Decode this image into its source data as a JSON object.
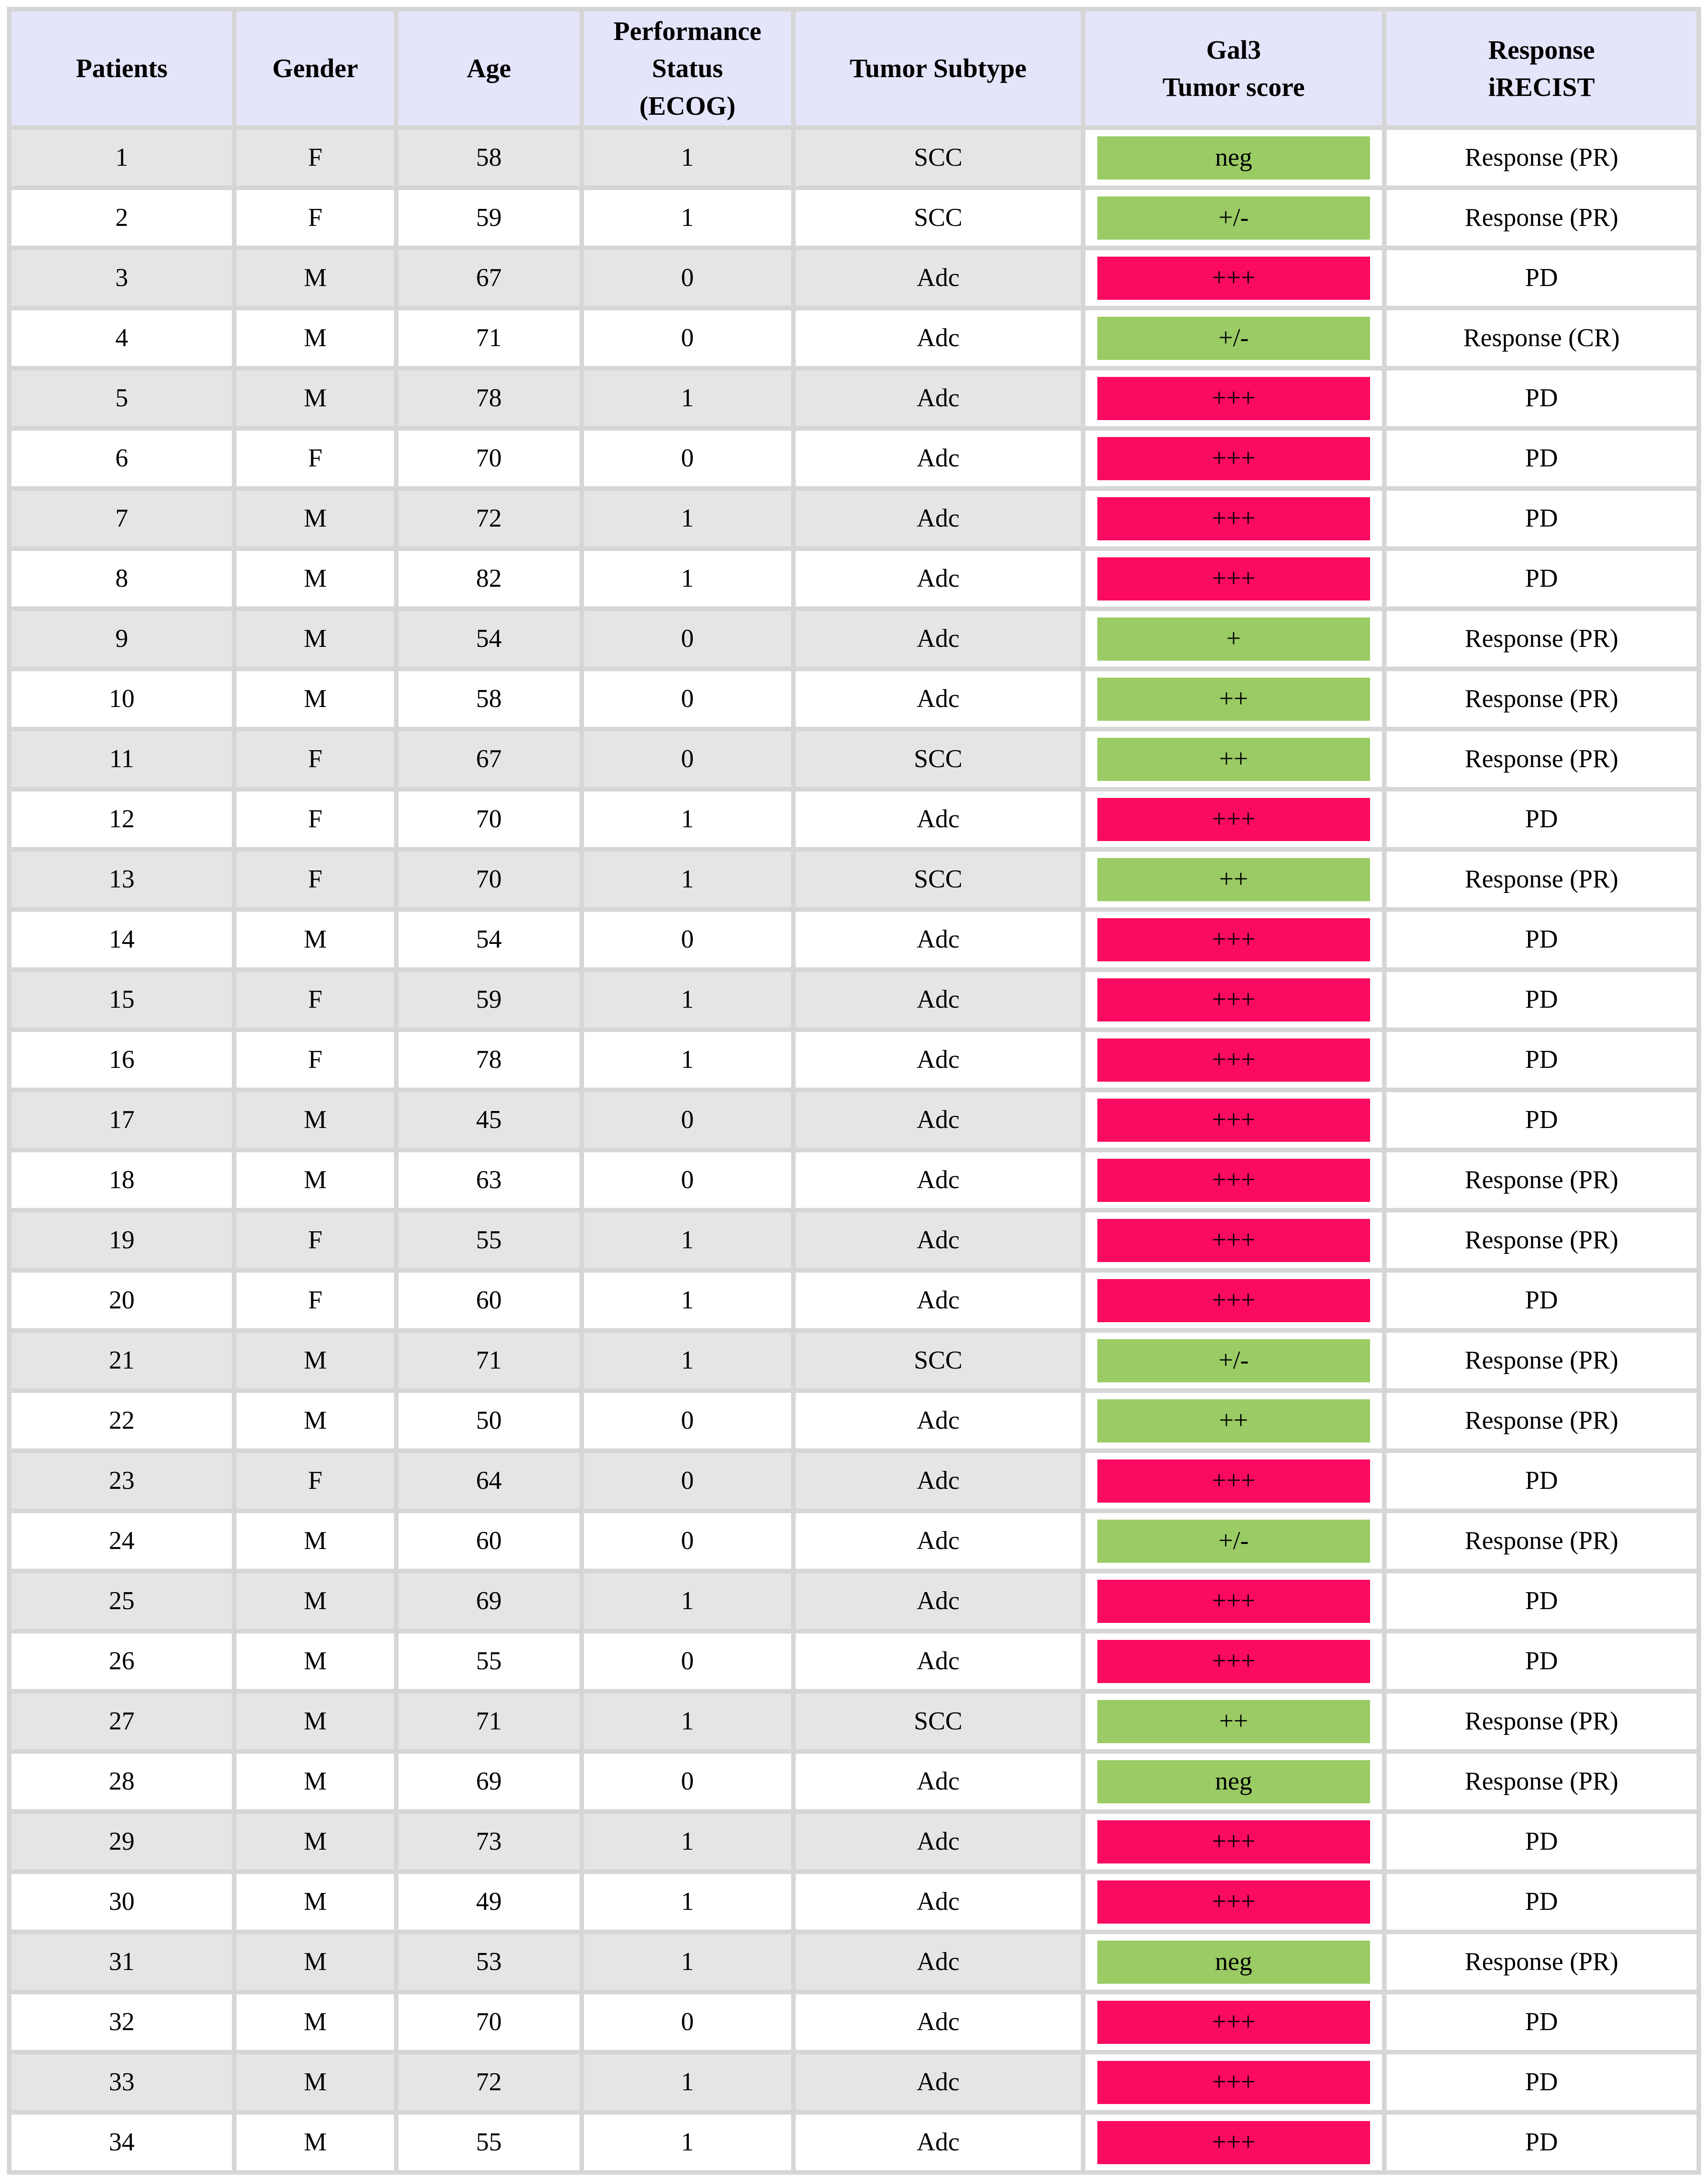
{
  "colors": {
    "header_bg": "#E4E4FA",
    "stripe_bg": "#E5E5E7",
    "grid_bg": "#D6D6D6",
    "gal3_green": "#9ACB64",
    "gal3_pink": "#FA0A60"
  },
  "table": {
    "columns": [
      {
        "id": "patient",
        "lines": [
          "Patients"
        ]
      },
      {
        "id": "gender",
        "lines": [
          "Gender"
        ]
      },
      {
        "id": "age",
        "lines": [
          "Age"
        ]
      },
      {
        "id": "ecog",
        "lines": [
          "Performance",
          "Status",
          "(ECOG)"
        ]
      },
      {
        "id": "subtype",
        "lines": [
          "Tumor Subtype"
        ]
      },
      {
        "id": "gal3",
        "lines": [
          "Gal3",
          "Tumor score"
        ]
      },
      {
        "id": "response",
        "lines": [
          "Response",
          "iRECIST"
        ]
      }
    ],
    "rows": [
      {
        "patient": "1",
        "gender": "F",
        "age": "58",
        "ecog": "1",
        "subtype": "SCC",
        "gal3": "neg",
        "gal3_color": "green",
        "response": "Response (PR)"
      },
      {
        "patient": "2",
        "gender": "F",
        "age": "59",
        "ecog": "1",
        "subtype": "SCC",
        "gal3": "+/-",
        "gal3_color": "green",
        "response": "Response (PR)"
      },
      {
        "patient": "3",
        "gender": "M",
        "age": "67",
        "ecog": "0",
        "subtype": "Adc",
        "gal3": "+++",
        "gal3_color": "pink",
        "response": "PD"
      },
      {
        "patient": "4",
        "gender": "M",
        "age": "71",
        "ecog": "0",
        "subtype": "Adc",
        "gal3": "+/-",
        "gal3_color": "green",
        "response": "Response (CR)"
      },
      {
        "patient": "5",
        "gender": "M",
        "age": "78",
        "ecog": "1",
        "subtype": "Adc",
        "gal3": "+++",
        "gal3_color": "pink",
        "response": "PD"
      },
      {
        "patient": "6",
        "gender": "F",
        "age": "70",
        "ecog": "0",
        "subtype": "Adc",
        "gal3": "+++",
        "gal3_color": "pink",
        "response": "PD"
      },
      {
        "patient": "7",
        "gender": "M",
        "age": "72",
        "ecog": "1",
        "subtype": "Adc",
        "gal3": "+++",
        "gal3_color": "pink",
        "response": "PD"
      },
      {
        "patient": "8",
        "gender": "M",
        "age": "82",
        "ecog": "1",
        "subtype": "Adc",
        "gal3": "+++",
        "gal3_color": "pink",
        "response": "PD"
      },
      {
        "patient": "9",
        "gender": "M",
        "age": "54",
        "ecog": "0",
        "subtype": "Adc",
        "gal3": "+",
        "gal3_color": "green",
        "response": "Response (PR)"
      },
      {
        "patient": "10",
        "gender": "M",
        "age": "58",
        "ecog": "0",
        "subtype": "Adc",
        "gal3": "++",
        "gal3_color": "green",
        "response": "Response (PR)"
      },
      {
        "patient": "11",
        "gender": "F",
        "age": "67",
        "ecog": "0",
        "subtype": "SCC",
        "gal3": "++",
        "gal3_color": "green",
        "response": "Response (PR)"
      },
      {
        "patient": "12",
        "gender": "F",
        "age": "70",
        "ecog": "1",
        "subtype": "Adc",
        "gal3": "+++",
        "gal3_color": "pink",
        "response": "PD"
      },
      {
        "patient": "13",
        "gender": "F",
        "age": "70",
        "ecog": "1",
        "subtype": "SCC",
        "gal3": "++",
        "gal3_color": "green",
        "response": "Response (PR)"
      },
      {
        "patient": "14",
        "gender": "M",
        "age": "54",
        "ecog": "0",
        "subtype": "Adc",
        "gal3": "+++",
        "gal3_color": "pink",
        "response": "PD"
      },
      {
        "patient": "15",
        "gender": "F",
        "age": "59",
        "ecog": "1",
        "subtype": "Adc",
        "gal3": "+++",
        "gal3_color": "pink",
        "response": "PD"
      },
      {
        "patient": "16",
        "gender": "F",
        "age": "78",
        "ecog": "1",
        "subtype": "Adc",
        "gal3": "+++",
        "gal3_color": "pink",
        "response": "PD"
      },
      {
        "patient": "17",
        "gender": "M",
        "age": "45",
        "ecog": "0",
        "subtype": "Adc",
        "gal3": "+++",
        "gal3_color": "pink",
        "response": "PD"
      },
      {
        "patient": "18",
        "gender": "M",
        "age": "63",
        "ecog": "0",
        "subtype": "Adc",
        "gal3": "+++",
        "gal3_color": "pink",
        "response": "Response (PR)"
      },
      {
        "patient": "19",
        "gender": "F",
        "age": "55",
        "ecog": "1",
        "subtype": "Adc",
        "gal3": "+++",
        "gal3_color": "pink",
        "response": "Response (PR)"
      },
      {
        "patient": "20",
        "gender": "F",
        "age": "60",
        "ecog": "1",
        "subtype": "Adc",
        "gal3": "+++",
        "gal3_color": "pink",
        "response": "PD"
      },
      {
        "patient": "21",
        "gender": "M",
        "age": "71",
        "ecog": "1",
        "subtype": "SCC",
        "gal3": "+/-",
        "gal3_color": "green",
        "response": "Response (PR)"
      },
      {
        "patient": "22",
        "gender": "M",
        "age": "50",
        "ecog": "0",
        "subtype": "Adc",
        "gal3": "++",
        "gal3_color": "green",
        "response": "Response (PR)"
      },
      {
        "patient": "23",
        "gender": "F",
        "age": "64",
        "ecog": "0",
        "subtype": "Adc",
        "gal3": "+++",
        "gal3_color": "pink",
        "response": "PD"
      },
      {
        "patient": "24",
        "gender": "M",
        "age": "60",
        "ecog": "0",
        "subtype": "Adc",
        "gal3": "+/-",
        "gal3_color": "green",
        "response": "Response (PR)"
      },
      {
        "patient": "25",
        "gender": "M",
        "age": "69",
        "ecog": "1",
        "subtype": "Adc",
        "gal3": "+++",
        "gal3_color": "pink",
        "response": "PD"
      },
      {
        "patient": "26",
        "gender": "M",
        "age": "55",
        "ecog": "0",
        "subtype": "Adc",
        "gal3": "+++",
        "gal3_color": "pink",
        "response": "PD"
      },
      {
        "patient": "27",
        "gender": "M",
        "age": "71",
        "ecog": "1",
        "subtype": "SCC",
        "gal3": "++",
        "gal3_color": "green",
        "response": "Response (PR)"
      },
      {
        "patient": "28",
        "gender": "M",
        "age": "69",
        "ecog": "0",
        "subtype": "Adc",
        "gal3": "neg",
        "gal3_color": "green",
        "response": "Response (PR)"
      },
      {
        "patient": "29",
        "gender": "M",
        "age": "73",
        "ecog": "1",
        "subtype": "Adc",
        "gal3": "+++",
        "gal3_color": "pink",
        "response": "PD"
      },
      {
        "patient": "30",
        "gender": "M",
        "age": "49",
        "ecog": "1",
        "subtype": "Adc",
        "gal3": "+++",
        "gal3_color": "pink",
        "response": "PD"
      },
      {
        "patient": "31",
        "gender": "M",
        "age": "53",
        "ecog": "1",
        "subtype": "Adc",
        "gal3": "neg",
        "gal3_color": "green",
        "response": "Response (PR)"
      },
      {
        "patient": "32",
        "gender": "M",
        "age": "70",
        "ecog": "0",
        "subtype": "Adc",
        "gal3": "+++",
        "gal3_color": "pink",
        "response": "PD"
      },
      {
        "patient": "33",
        "gender": "M",
        "age": "72",
        "ecog": "1",
        "subtype": "Adc",
        "gal3": "+++",
        "gal3_color": "pink",
        "response": "PD"
      },
      {
        "patient": "34",
        "gender": "M",
        "age": "55",
        "ecog": "1",
        "subtype": "Adc",
        "gal3": "+++",
        "gal3_color": "pink",
        "response": "PD"
      }
    ]
  }
}
